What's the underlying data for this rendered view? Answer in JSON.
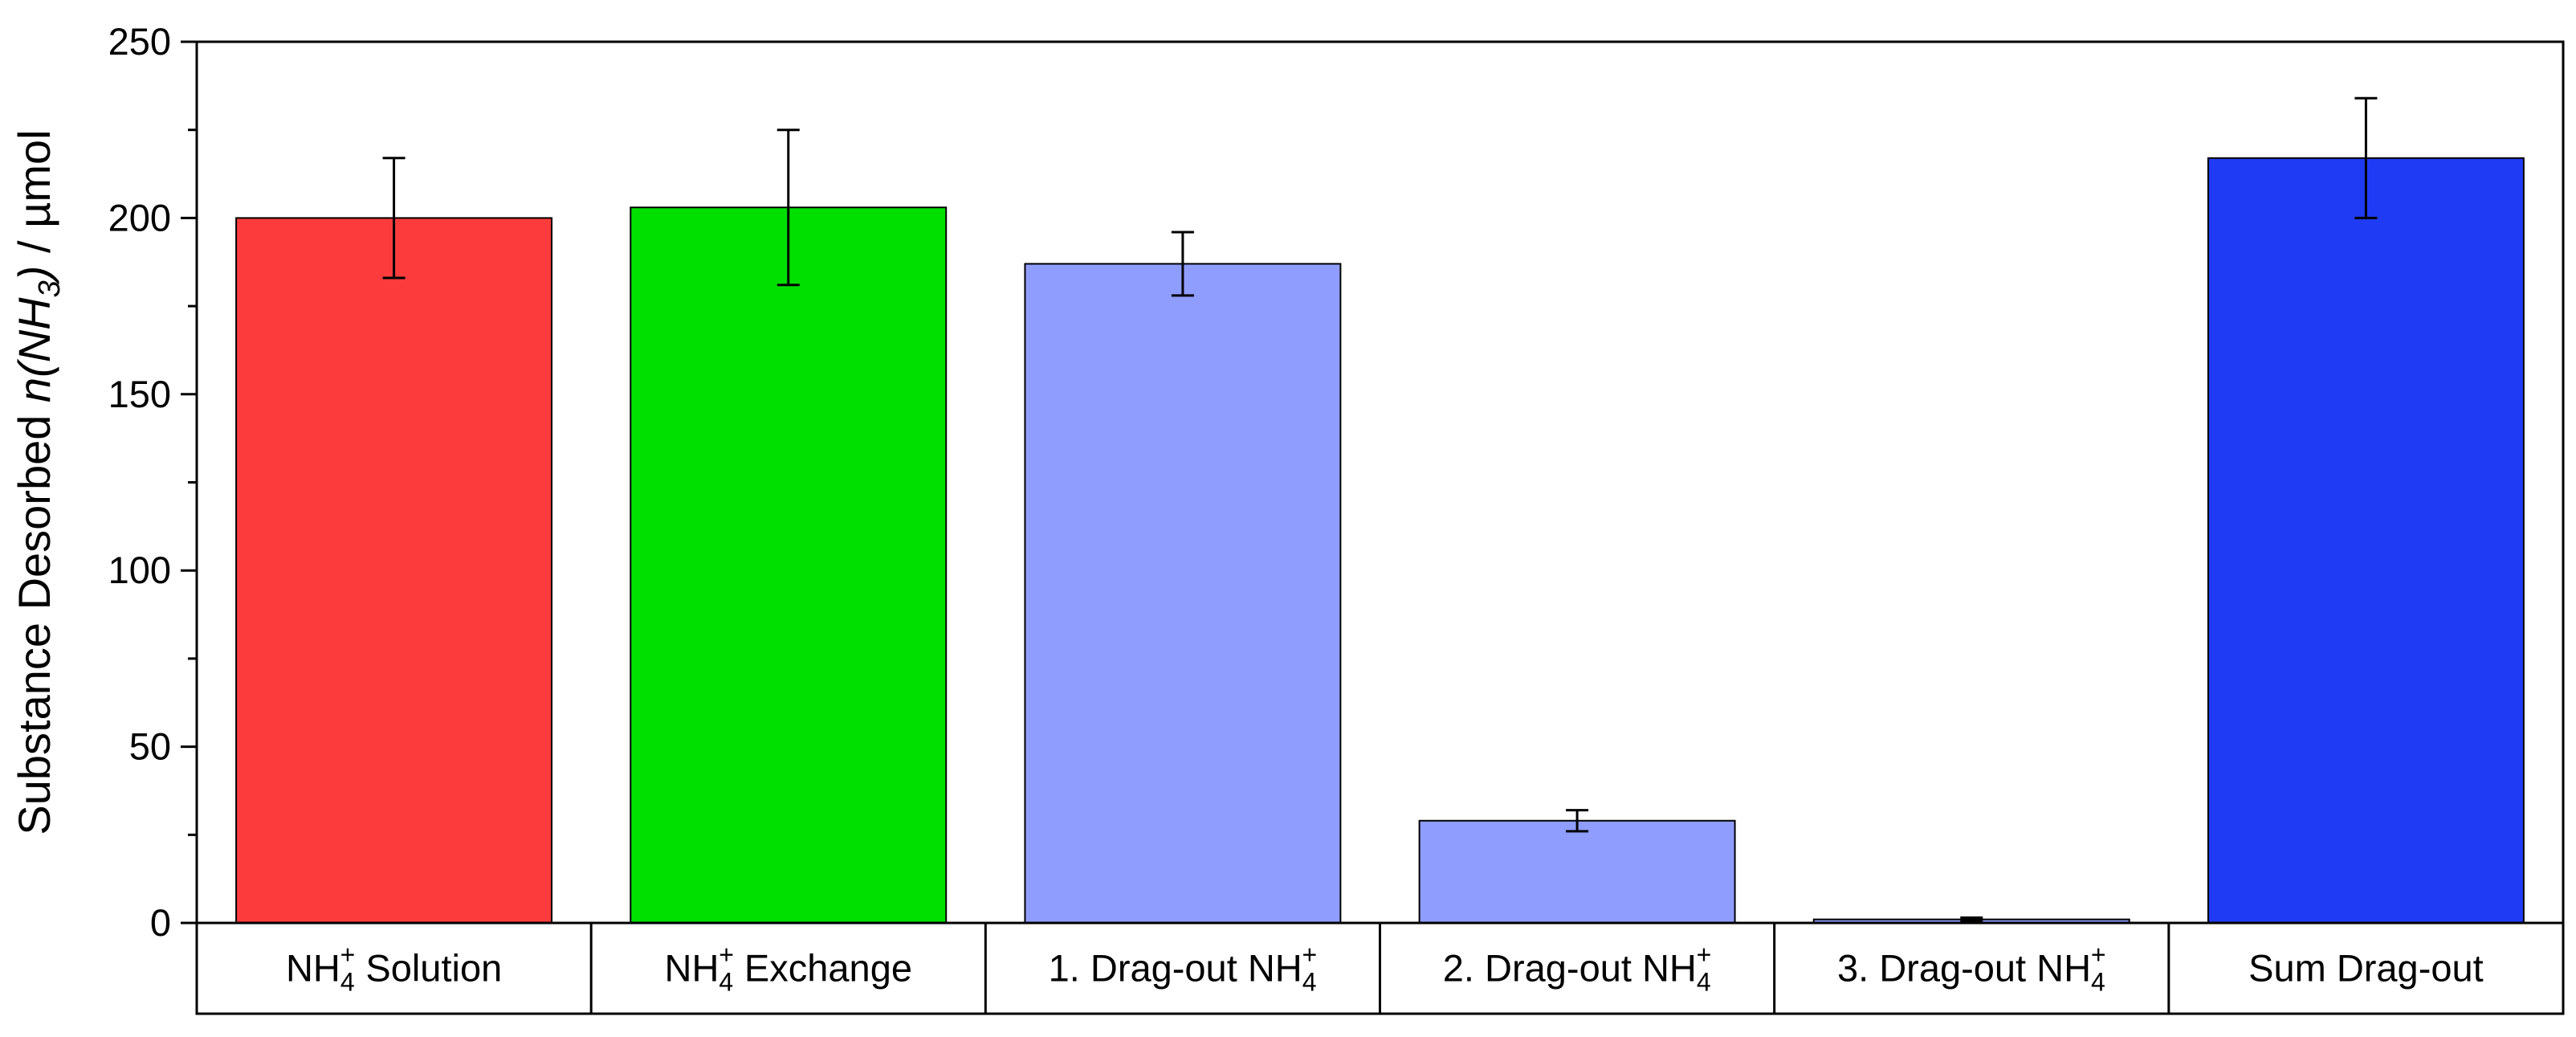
{
  "chart_data": {
    "type": "bar",
    "title": "",
    "xlabel": "",
    "ylabel_parts": [
      {
        "text": "Substance Desorbed ",
        "style": "normal"
      },
      {
        "text": "n(NH",
        "style": "italic"
      },
      {
        "text": "3",
        "style": "italic-sub"
      },
      {
        "text": ")",
        "style": "italic"
      },
      {
        "text": " / µmol",
        "style": "normal"
      }
    ],
    "ylim": [
      0,
      250
    ],
    "yticks": [
      0,
      50,
      100,
      150,
      200,
      250
    ],
    "grid": false,
    "categories": [
      {
        "label_parts": [
          {
            "text": "NH",
            "s": "n"
          },
          {
            "text": "4",
            "s": "sub"
          },
          {
            "text": "+",
            "s": "sup"
          },
          {
            "text": " Solution",
            "s": "n"
          }
        ]
      },
      {
        "label_parts": [
          {
            "text": "NH",
            "s": "n"
          },
          {
            "text": "4",
            "s": "sub"
          },
          {
            "text": "+",
            "s": "sup"
          },
          {
            "text": " Exchange",
            "s": "n"
          }
        ]
      },
      {
        "label_parts": [
          {
            "text": "1. Drag-out NH",
            "s": "n"
          },
          {
            "text": "4",
            "s": "sub"
          },
          {
            "text": "+",
            "s": "sup"
          }
        ]
      },
      {
        "label_parts": [
          {
            "text": "2. Drag-out NH",
            "s": "n"
          },
          {
            "text": "4",
            "s": "sub"
          },
          {
            "text": "+",
            "s": "sup"
          }
        ]
      },
      {
        "label_parts": [
          {
            "text": "3. Drag-out NH",
            "s": "n"
          },
          {
            "text": "4",
            "s": "sub"
          },
          {
            "text": "+",
            "s": "sup"
          }
        ]
      },
      {
        "label_parts": [
          {
            "text": "Sum Drag-out",
            "s": "n"
          }
        ]
      }
    ],
    "values": [
      200,
      203,
      187,
      29,
      1,
      217
    ],
    "errors": [
      17,
      22,
      9,
      3,
      0.5,
      17
    ],
    "colors": [
      "#fc3c3c",
      "#00e000",
      "#8f9dff",
      "#8f9dff",
      "#8f9dff",
      "#1f3cf4"
    ]
  }
}
